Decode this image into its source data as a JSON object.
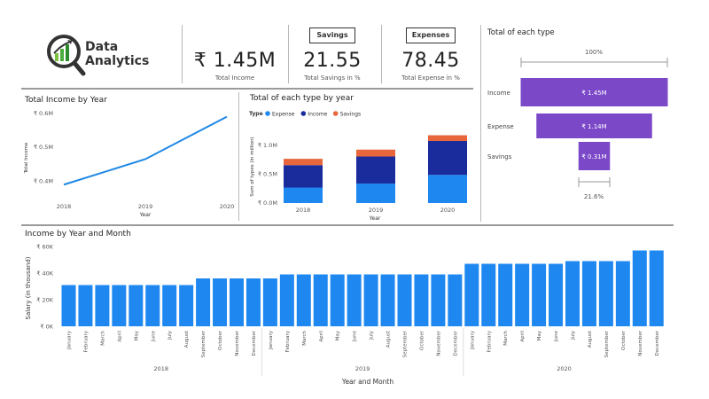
{
  "logo": {
    "line1": "Data",
    "line2": "Analytics"
  },
  "kpis": {
    "income": {
      "value": "₹ 1.45M",
      "label": "Total Income"
    },
    "savings": {
      "box": "Savings",
      "value": "21.55",
      "label": "Total Savings in %"
    },
    "expenses": {
      "box": "Expenses",
      "value": "78.45",
      "label": "Total Expense in %"
    }
  },
  "colors": {
    "income": "#1a2b9c",
    "expense": "#1e88f0",
    "savings": "#e8663c",
    "line": "#1e88e5",
    "funnel": "#7b48c8",
    "bar": "#1e88f0"
  },
  "funnel": {
    "title": "Total of each type",
    "top_pct": "100%",
    "bottom_pct": "21.6%",
    "items": [
      {
        "label": "Income",
        "value_label": "₹ 1.45M",
        "value": 1.45
      },
      {
        "label": "Expense",
        "value_label": "₹ 1.14M",
        "value": 1.14
      },
      {
        "label": "Savings",
        "value_label": "₹ 0.31M",
        "value": 0.31
      }
    ]
  },
  "chart_data": [
    {
      "type": "line",
      "title": "Total Income by Year",
      "x": [
        "2018",
        "2019",
        "2020"
      ],
      "values": [
        0.39,
        0.465,
        0.59
      ],
      "yticks": [
        "₹ 0.6M",
        "₹ 0.5M",
        "₹ 0.4M"
      ],
      "ytick_values": [
        0.6,
        0.5,
        0.4
      ],
      "ylim": [
        0.375,
        0.615
      ],
      "xlabel": "Year",
      "ylabel": "Total Income"
    },
    {
      "type": "bar",
      "stacked": true,
      "title": "Total of each type by year",
      "legend_title": "Type",
      "legend": [
        "Expense",
        "Income",
        "Savings"
      ],
      "categories": [
        "2018",
        "2019",
        "2020"
      ],
      "series": [
        {
          "name": "Expense",
          "values": [
            0.27,
            0.34,
            0.49
          ]
        },
        {
          "name": "Income",
          "values": [
            0.39,
            0.47,
            0.59
          ]
        },
        {
          "name": "Savings",
          "values": [
            0.11,
            0.12,
            0.1
          ]
        }
      ],
      "yticks": [
        "₹ 1.0M",
        "₹ 0.5M",
        "₹ 0.0M"
      ],
      "ytick_values": [
        1.0,
        0.5,
        0.0
      ],
      "ylim": [
        0,
        1.25
      ],
      "xlabel": "Year",
      "ylabel": "Sum of types (in million)"
    },
    {
      "type": "bar",
      "title": "Income by Year and Month",
      "ylabel": "Salary (in thousand)",
      "xlabel": "Year and Month",
      "yticks": [
        "₹ 60K",
        "₹ 40K",
        "₹ 20K",
        "₹ 0K"
      ],
      "ytick_values": [
        60,
        40,
        20,
        0
      ],
      "ylim": [
        0,
        60
      ],
      "years": [
        "2018",
        "2019",
        "2020"
      ],
      "months": [
        "January",
        "February",
        "March",
        "April",
        "May",
        "June",
        "July",
        "August",
        "September",
        "October",
        "November",
        "December"
      ],
      "values": [
        31,
        31,
        31,
        31,
        31,
        31,
        31,
        31,
        36,
        36,
        36,
        36,
        36,
        39,
        39,
        39,
        39,
        39,
        39,
        39,
        39,
        39,
        39,
        39,
        47,
        47,
        47,
        47,
        47,
        47,
        49,
        49,
        49,
        49,
        57,
        57
      ]
    }
  ]
}
